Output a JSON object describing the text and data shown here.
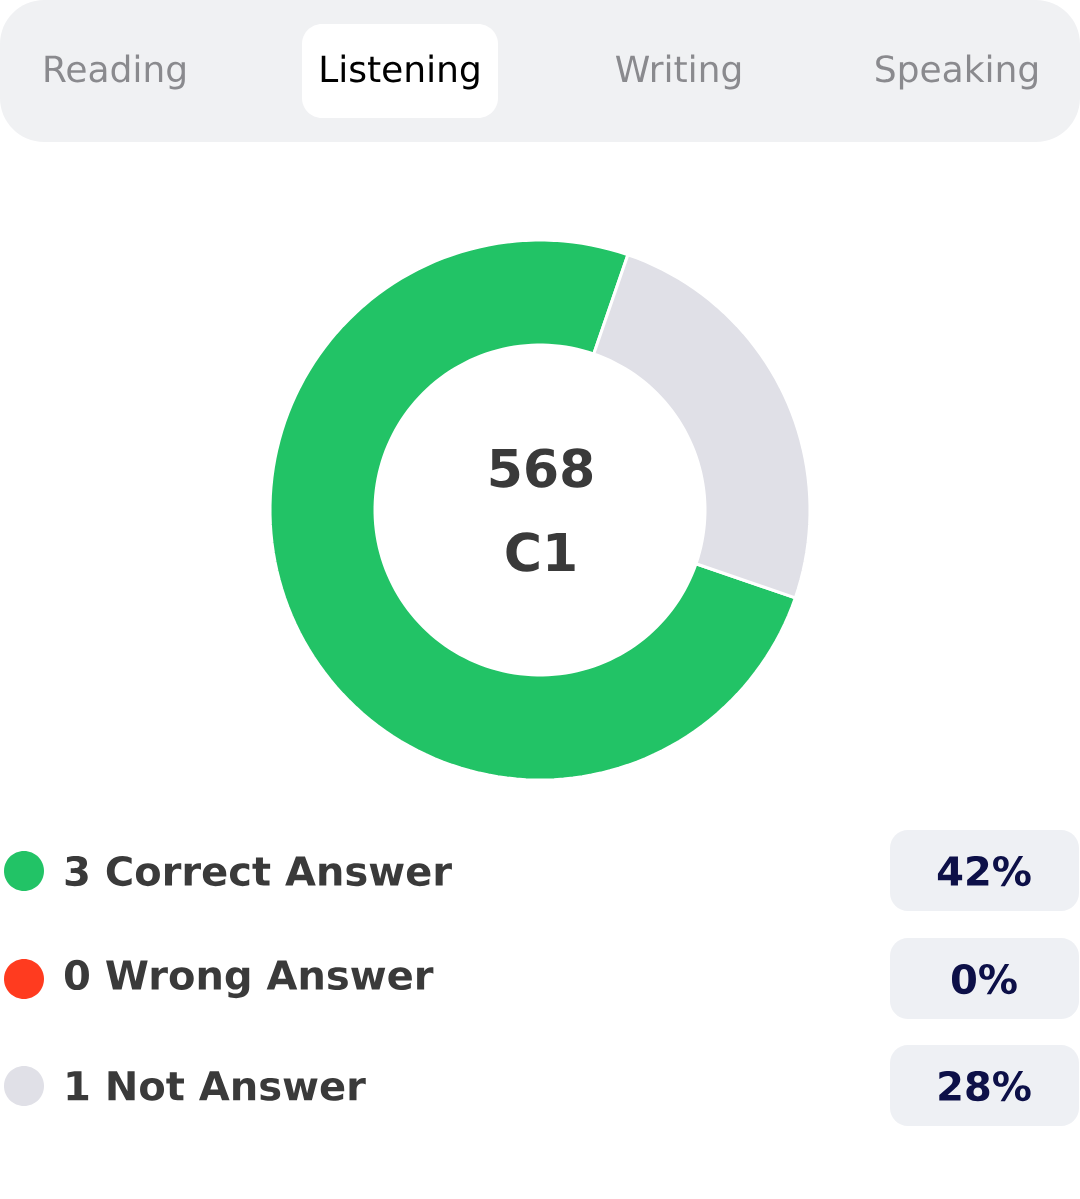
{
  "chart_data": {
    "type": "donut",
    "categories": [
      "3 Correct Answer",
      "0 Wrong Answer",
      "1 Not Answer"
    ],
    "values": [
      3,
      0,
      1
    ],
    "colors": [
      "#22c366",
      "#ff3b1f",
      "#e0e0e7"
    ],
    "legend": "bottom",
    "annotations": [
      "Reading",
      "Listening",
      "Writing",
      "Speaking",
      "568",
      "C1",
      "42%",
      "0%",
      "28%"
    ]
  }
}
